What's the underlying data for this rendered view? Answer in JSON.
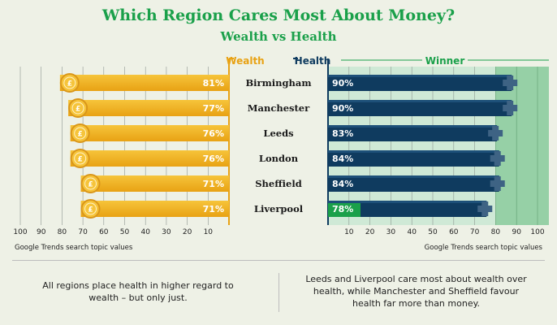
{
  "title": "Which Region Cares Most About Money?",
  "subtitle": "Wealth vs Health",
  "colors": {
    "wealth": "#f2b320",
    "health": "#0f3b5f",
    "winner": "#1aa04a",
    "title": "#1aa04a"
  },
  "chart_data": {
    "type": "bar",
    "categories": [
      "Birmingham",
      "Manchester",
      "Leeds",
      "London",
      "Sheffield",
      "Liverpool"
    ],
    "series": [
      {
        "name": "Wealth",
        "values": [
          81,
          77,
          76,
          76,
          71,
          71
        ],
        "labels": [
          "81%",
          "77%",
          "76%",
          "76%",
          "71%",
          "71%"
        ]
      },
      {
        "name": "Health",
        "values": [
          90,
          90,
          83,
          84,
          84,
          78
        ],
        "labels": [
          "90%",
          "90%",
          "83%",
          "84%",
          "84%",
          "78%"
        ]
      }
    ],
    "legend": {
      "wealth": "Wealth",
      "health": "Health",
      "winner": "Winner"
    },
    "left_axis": {
      "ticks": [
        "100",
        "90",
        "80",
        "70",
        "60",
        "50",
        "40",
        "30",
        "20",
        "10"
      ],
      "label": "Google Trends search topic values",
      "range": [
        0,
        100
      ]
    },
    "right_axis": {
      "ticks": [
        "10",
        "20",
        "30",
        "40",
        "50",
        "60",
        "70",
        "80",
        "90",
        "100"
      ],
      "label": "Google Trends search topic values",
      "range": [
        0,
        100
      ]
    }
  },
  "notes": {
    "left": "All regions place health in higher regard to wealth – but only just.",
    "right": "Leeds and Liverpool care most about wealth over health, while Manchester and Sheffield favour health far more than money."
  }
}
